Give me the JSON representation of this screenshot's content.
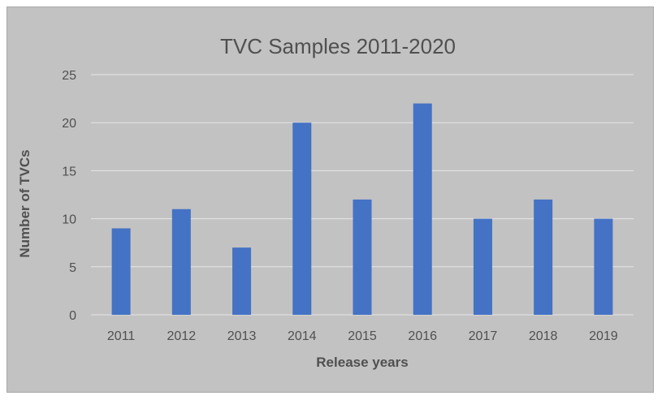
{
  "colors": {
    "bar": "#4472C4",
    "grid": "#e6e6e6",
    "background": "#c2c2c2",
    "text": "#505050"
  },
  "chart_data": {
    "type": "bar",
    "title": "TVC Samples 2011-2020",
    "xlabel": "Release years",
    "ylabel": "Number of TVCs",
    "categories": [
      "2011",
      "2012",
      "2013",
      "2014",
      "2015",
      "2016",
      "2017",
      "2018",
      "2019"
    ],
    "values": [
      9,
      11,
      7,
      20,
      12,
      22,
      10,
      12,
      10
    ],
    "ylim": [
      0,
      25
    ],
    "yticks": [
      "0",
      "5",
      "10",
      "15",
      "20",
      "25"
    ],
    "grid": true,
    "legend": "none"
  }
}
